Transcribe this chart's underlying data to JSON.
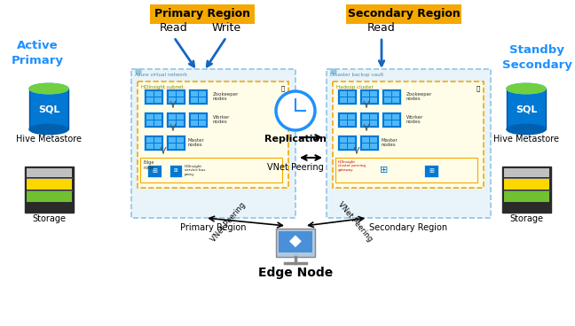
{
  "bg_color": "#ffffff",
  "primary_region_label": "Primary Region",
  "secondary_region_label": "Secondary Region",
  "active_primary_label": "Active\nPrimary",
  "standby_secondary_label": "Standby\nSecondary",
  "replication_label": "Replication",
  "vnet_peering_label": "VNet Peering",
  "vnet_peering_left_label": "VNet Peering",
  "vnet_peering_right_label": "VNet Peering",
  "edge_node_label": "Edge Node",
  "hive_metastore_label": "Hive Metastore",
  "storage_label": "Storage",
  "read_label": "Read",
  "write_label": "Write",
  "orange_bg_color": "#F5A800",
  "blue_text_color": "#1E90FF",
  "dark_blue": "#0070c0",
  "blue_arrow_color": "#1565C0",
  "box_light_blue": "#E8F4FA",
  "box_border_blue": "#92C5E0",
  "inner_box_yellow_bg": "#FFFDE7",
  "inner_box_yellow_border": "#F5A800",
  "node_blue": "#0078D4",
  "node_light_blue": "#50B0F0"
}
